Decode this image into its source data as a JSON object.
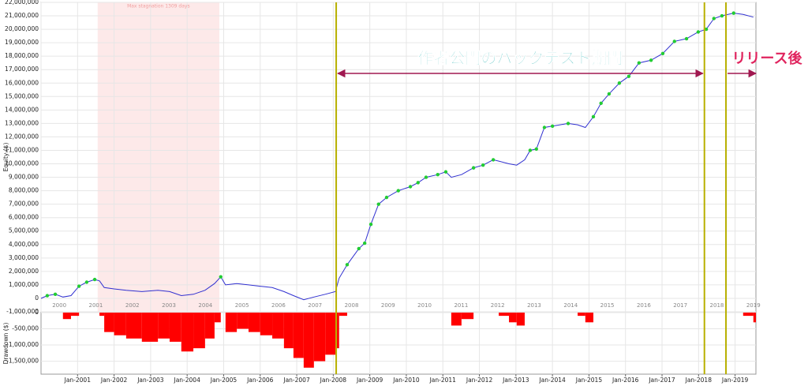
{
  "chart_data": [
    {
      "type": "line",
      "ylabel": "Equity ($)",
      "color": "#3030d0",
      "new_high_color": "#22cc33",
      "grid": true,
      "x": [
        2000.0,
        2000.17,
        2000.39,
        2000.6,
        2000.82,
        2001.04,
        2001.25,
        2001.47,
        2001.6,
        2001.73,
        2002.0,
        2002.33,
        2002.76,
        2003.2,
        2003.52,
        2003.84,
        2004.17,
        2004.49,
        2004.75,
        2004.92,
        2005.05,
        2005.36,
        2005.68,
        2006.0,
        2006.33,
        2006.65,
        2006.91,
        2007.19,
        2007.47,
        2007.78,
        2008.06,
        2008.16,
        2008.38,
        2008.7,
        2008.86,
        2009.03,
        2009.24,
        2009.46,
        2009.78,
        2010.11,
        2010.32,
        2010.54,
        2010.86,
        2011.08,
        2011.23,
        2011.51,
        2011.84,
        2012.1,
        2012.38,
        2012.53,
        2012.81,
        2013.02,
        2013.24,
        2013.39,
        2013.56,
        2013.78,
        2014.0,
        2014.43,
        2014.69,
        2014.9,
        2015.12,
        2015.33,
        2015.55,
        2015.83,
        2016.09,
        2016.37,
        2016.7,
        2017.02,
        2017.34,
        2017.67,
        2017.99,
        2018.21,
        2018.42,
        2018.64,
        2018.96,
        2019.22,
        2019.5
      ],
      "values": [
        0,
        200000,
        300000,
        100000,
        200000,
        900000,
        1200000,
        1400000,
        1300000,
        800000,
        700000,
        600000,
        500000,
        600000,
        500000,
        200000,
        300000,
        600000,
        1100000,
        1600000,
        1000000,
        1100000,
        1000000,
        900000,
        800000,
        500000,
        200000,
        -100000,
        100000,
        300000,
        500000,
        1500000,
        2500000,
        3700000,
        4100000,
        5500000,
        7000000,
        7500000,
        8000000,
        8300000,
        8600000,
        9000000,
        9200000,
        9400000,
        9000000,
        9200000,
        9700000,
        9900000,
        10300000,
        10200000,
        10000000,
        9900000,
        10300000,
        11000000,
        11100000,
        12700000,
        12800000,
        13000000,
        12900000,
        12700000,
        13500000,
        14500000,
        15200000,
        16000000,
        16500000,
        17500000,
        17700000,
        18200000,
        19100000,
        19300000,
        19800000,
        20000000,
        20800000,
        21000000,
        21200000,
        21100000,
        20900000
      ],
      "xlim": [
        2000,
        2019.57
      ],
      "xticks": [
        2000,
        2001,
        2002,
        2003,
        2004,
        2005,
        2006,
        2007,
        2008,
        2009,
        2010,
        2011,
        2012,
        2013,
        2014,
        2015,
        2016,
        2017,
        2018,
        2019
      ],
      "ylim": [
        -1000000,
        22000000
      ],
      "yticks": [
        {
          "value": -1000000,
          "label": "-1,000,000"
        },
        0,
        {
          "value": 1000000,
          "label": "1,000,000"
        },
        {
          "value": 2000000,
          "label": "2,000,000"
        },
        {
          "value": 3000000,
          "label": "3,000,000"
        },
        {
          "value": 4000000,
          "label": "4,000,000"
        },
        {
          "value": 5000000,
          "label": "5,000,000"
        },
        {
          "value": 6000000,
          "label": "6,000,000"
        },
        {
          "value": 7000000,
          "label": "7,000,000"
        },
        {
          "value": 8000000,
          "label": "8,000,000"
        },
        {
          "value": 9000000,
          "label": "9,000,000"
        },
        {
          "value": 10000000,
          "label": "10,000,000"
        },
        {
          "value": 11000000,
          "label": "11,000,000"
        },
        {
          "value": 12000000,
          "label": "12,000,000"
        },
        {
          "value": 13000000,
          "label": "13,000,000"
        },
        {
          "value": 14000000,
          "label": "14,000,000"
        },
        {
          "value": 15000000,
          "label": "15,000,000"
        },
        {
          "value": 16000000,
          "label": "16,000,000"
        },
        {
          "value": 17000000,
          "label": "17,000,000"
        },
        {
          "value": 18000000,
          "label": "18,000,000"
        },
        {
          "value": 19000000,
          "label": "19,000,000"
        },
        {
          "value": 20000000,
          "label": "20,000,000"
        },
        {
          "value": 21000000,
          "label": "21,000,000"
        },
        {
          "value": 22000000,
          "label": "22,000,000"
        }
      ],
      "shaded_region": [
        2001.55,
        2004.88
      ],
      "vlines": [
        2008.08,
        2018.16,
        2018.75
      ],
      "annotations": [
        {
          "text": "Max stagnation  1309 days",
          "color": "#f0a0a0"
        },
        {
          "text": "作者公開のバックテスト期間",
          "color": "#38b8b8"
        },
        {
          "text": "リリース後",
          "color": "#e0245e"
        }
      ],
      "arrow_color": "#a01850"
    },
    {
      "type": "bar",
      "ylabel": "Drawdown ($)",
      "color": "#ff0000",
      "grid": true,
      "x": [
        2000.0,
        2000.17,
        2000.39,
        2000.6,
        2000.82,
        2001.04,
        2001.25,
        2001.47,
        2001.6,
        2001.73,
        2002.0,
        2002.33,
        2002.76,
        2003.2,
        2003.52,
        2003.84,
        2004.17,
        2004.49,
        2004.75,
        2004.92,
        2005.05,
        2005.36,
        2005.68,
        2006.0,
        2006.33,
        2006.65,
        2006.91,
        2007.19,
        2007.47,
        2007.78,
        2008.06,
        2008.16,
        2008.38,
        2008.7,
        2008.86,
        2009.03,
        2009.24,
        2009.46,
        2009.78,
        2010.11,
        2010.32,
        2010.54,
        2010.86,
        2011.08,
        2011.23,
        2011.51,
        2011.84,
        2012.1,
        2012.38,
        2012.53,
        2012.81,
        2013.02,
        2013.24,
        2013.39,
        2013.56,
        2013.78,
        2014.0,
        2014.43,
        2014.69,
        2014.9,
        2015.12,
        2015.33,
        2015.55,
        2015.83,
        2016.09,
        2016.37,
        2016.7,
        2017.02,
        2017.34,
        2017.67,
        2017.99,
        2018.21,
        2018.42,
        2018.64,
        2018.96,
        2019.22,
        2019.5
      ],
      "values": [
        0,
        0,
        0,
        -200000,
        -100000,
        0,
        0,
        0,
        -100000,
        -600000,
        -700000,
        -800000,
        -900000,
        -800000,
        -900000,
        -1200000,
        -1100000,
        -800000,
        -300000,
        0,
        -600000,
        -500000,
        -600000,
        -700000,
        -800000,
        -1100000,
        -1400000,
        -1700000,
        -1500000,
        -1300000,
        -1100000,
        -100000,
        0,
        0,
        0,
        0,
        0,
        0,
        0,
        0,
        0,
        0,
        0,
        0,
        -400000,
        -200000,
        0,
        0,
        0,
        -100000,
        -300000,
        -400000,
        0,
        0,
        0,
        0,
        0,
        0,
        -100000,
        -300000,
        0,
        0,
        0,
        0,
        0,
        0,
        0,
        0,
        0,
        0,
        0,
        0,
        0,
        0,
        0,
        -100000,
        -300000
      ],
      "xlim": [
        2000,
        2019.57
      ],
      "xticks": [
        {
          "value": 2001,
          "label": "Jan-2001"
        },
        {
          "value": 2002,
          "label": "Jan-2002"
        },
        {
          "value": 2003,
          "label": "Jan-2003"
        },
        {
          "value": 2004,
          "label": "Jan-2004"
        },
        {
          "value": 2005,
          "label": "Jan-2005"
        },
        {
          "value": 2006,
          "label": "Jan-2006"
        },
        {
          "value": 2007,
          "label": "Jan-2007"
        },
        {
          "value": 2008,
          "label": "Jan-2008"
        },
        {
          "value": 2009,
          "label": "Jan-2009"
        },
        {
          "value": 2010,
          "label": "Jan-2010"
        },
        {
          "value": 2011,
          "label": "Jan-2011"
        },
        {
          "value": 2012,
          "label": "Jan-2012"
        },
        {
          "value": 2013,
          "label": "Jan-2013"
        },
        {
          "value": 2014,
          "label": "Jan-2014"
        },
        {
          "value": 2015,
          "label": "Jan-2015"
        },
        {
          "value": 2016,
          "label": "Jan-2016"
        },
        {
          "value": 2017,
          "label": "Jan-2017"
        },
        {
          "value": 2018,
          "label": "Jan-2018"
        },
        {
          "value": 2019,
          "label": "Jan-2019"
        }
      ],
      "ylim": [
        -1900000,
        0
      ],
      "yticks": [
        0,
        {
          "value": -500000,
          "label": "-500,000"
        },
        {
          "value": -1000000,
          "label": "-1,000,000"
        },
        {
          "value": -1500000,
          "label": "-1,500,000"
        }
      ]
    }
  ]
}
